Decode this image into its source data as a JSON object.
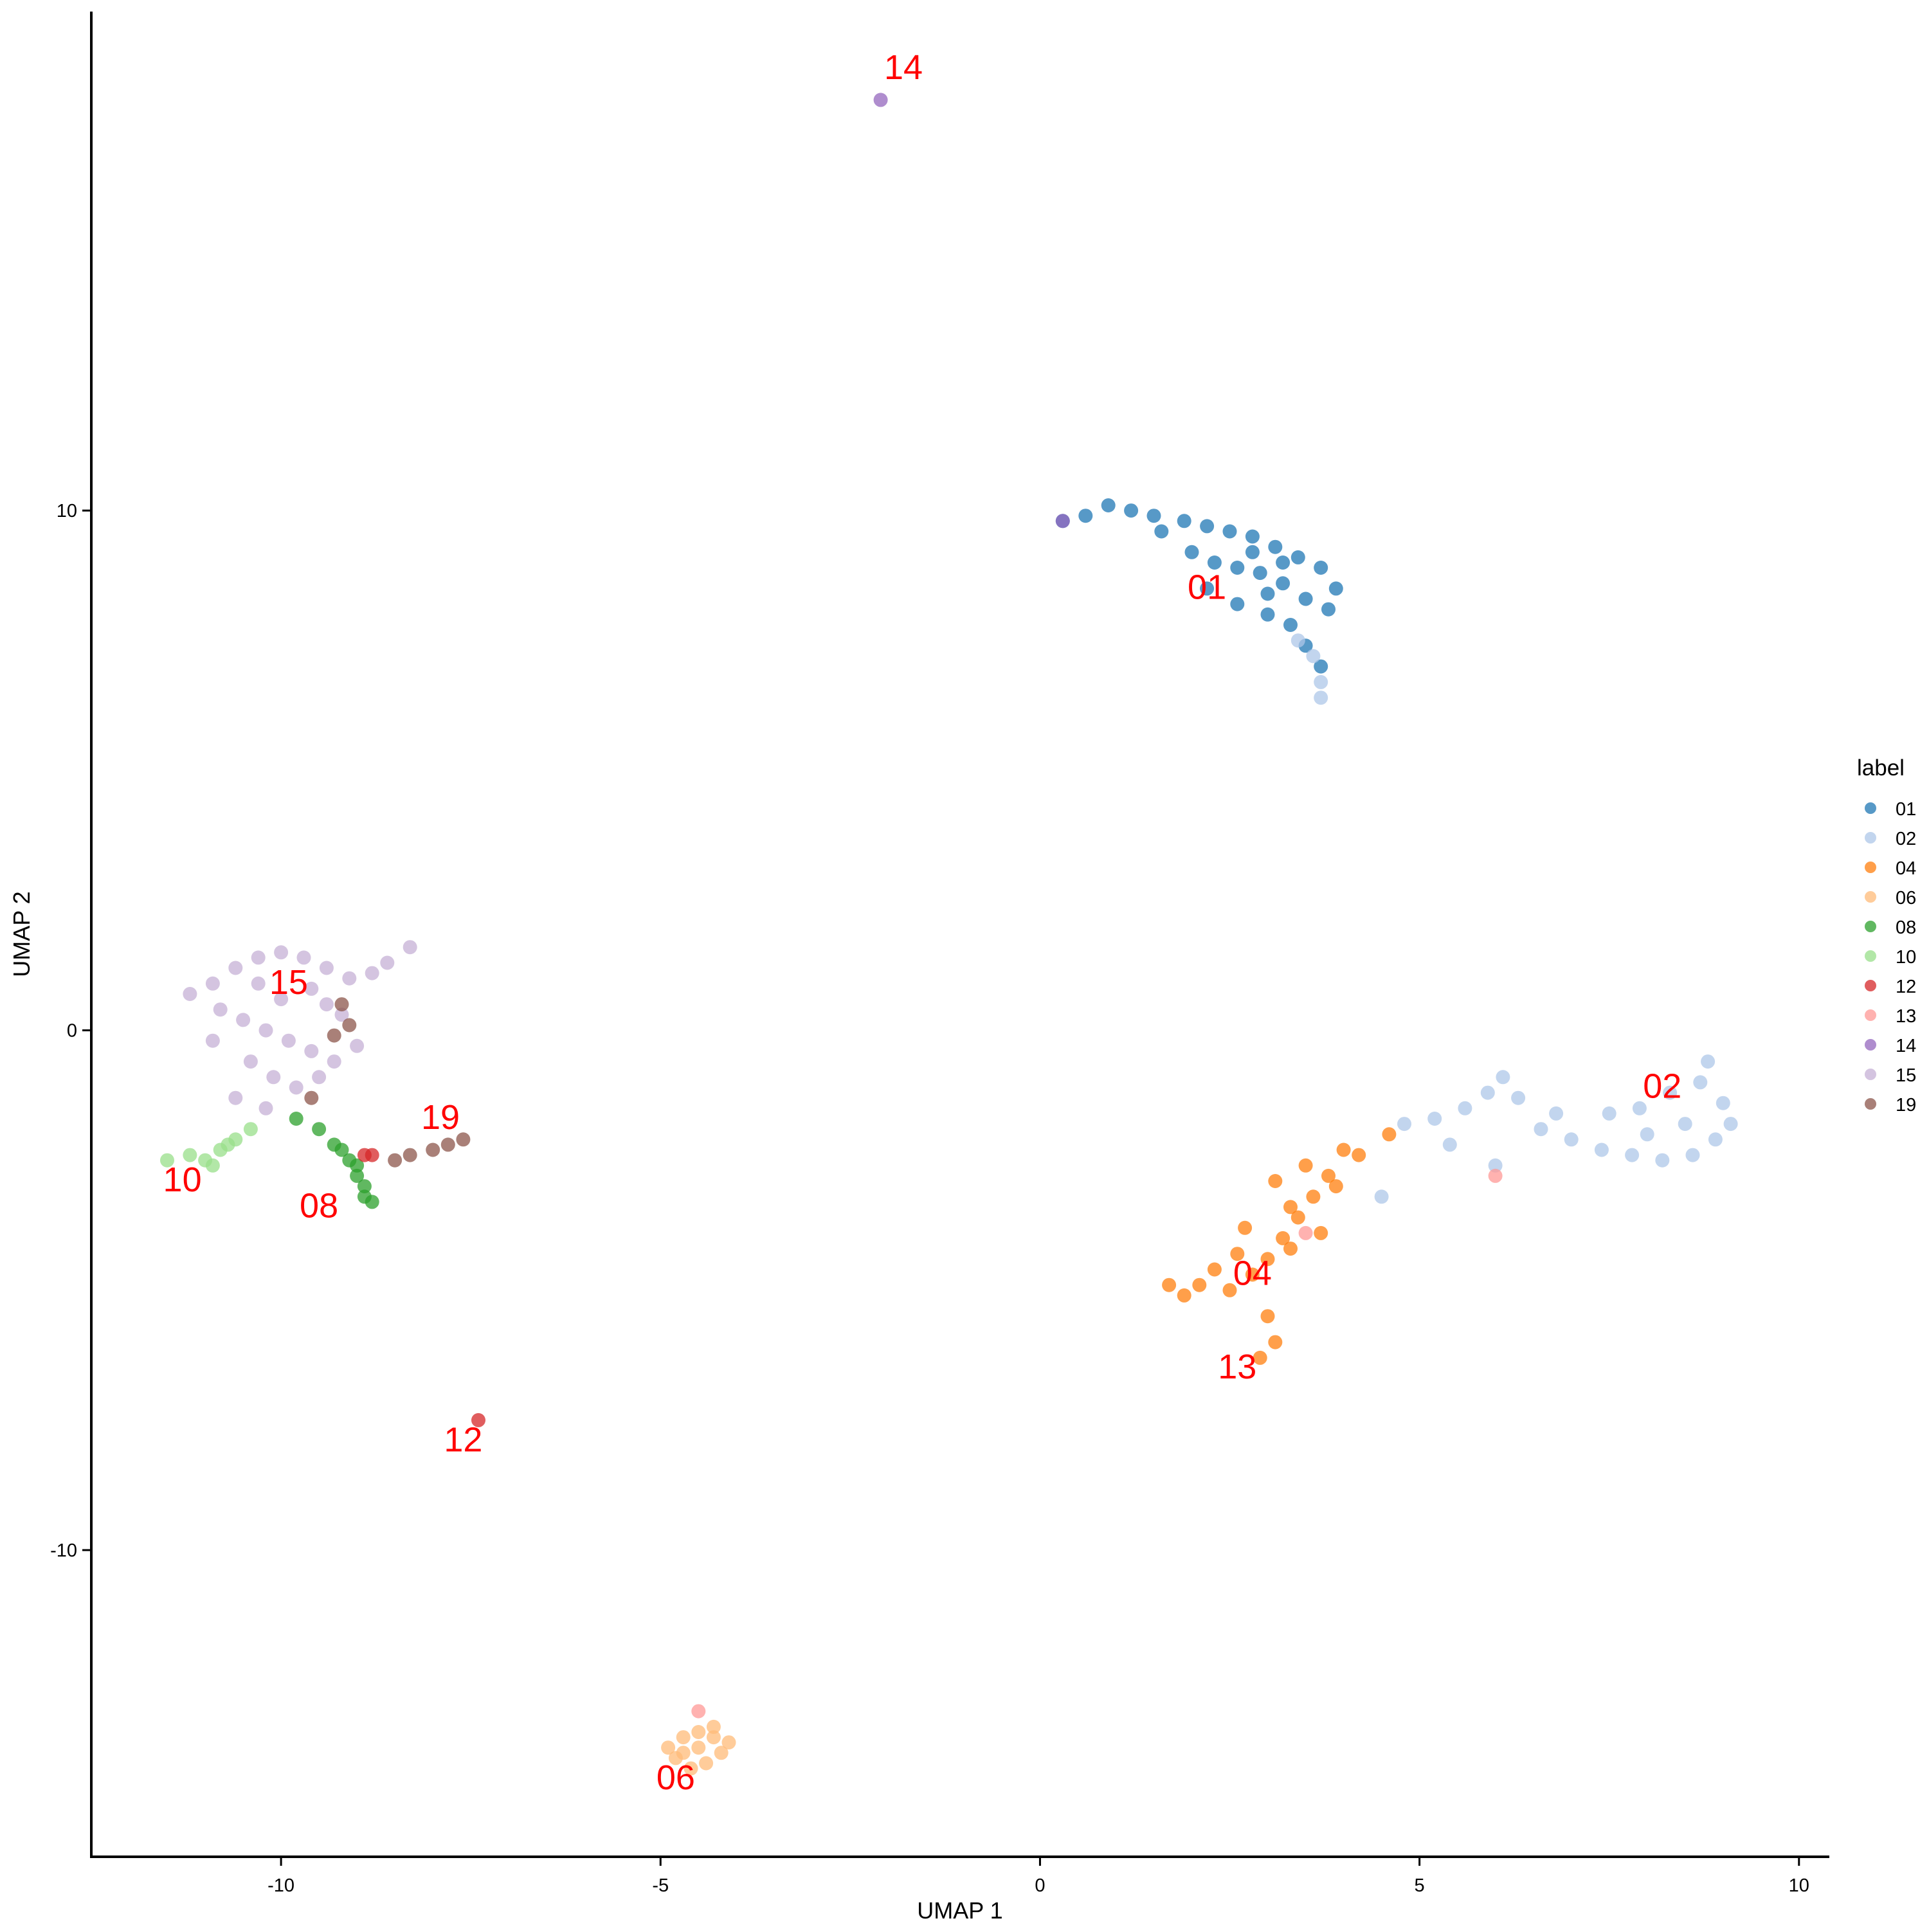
{
  "chart_data": {
    "type": "scatter",
    "title": "",
    "xlabel": "UMAP 1",
    "ylabel": "UMAP 2",
    "xlim": [
      -12.5,
      10.4
    ],
    "ylim": [
      -15.9,
      19.6
    ],
    "x_ticks": [
      -10,
      -5,
      0,
      5,
      10
    ],
    "y_ticks": [
      -10,
      0,
      10
    ],
    "x_tick_labels": [
      "-10",
      "-5",
      "0",
      "5",
      "10"
    ],
    "y_tick_labels": [
      "-10",
      "0",
      "10"
    ],
    "grid": false,
    "legend": {
      "title": "label",
      "placement": "right",
      "entries": [
        {
          "label": "01",
          "color": "#1f77b4"
        },
        {
          "label": "02",
          "color": "#aec7e8"
        },
        {
          "label": "04",
          "color": "#ff7f0e"
        },
        {
          "label": "06",
          "color": "#ffbb78"
        },
        {
          "label": "08",
          "color": "#2ca02c"
        },
        {
          "label": "10",
          "color": "#98df8a"
        },
        {
          "label": "12",
          "color": "#d62728"
        },
        {
          "label": "13",
          "color": "#ff9896"
        },
        {
          "label": "14",
          "color": "#9467bd"
        },
        {
          "label": "15",
          "color": "#c5b0d5"
        },
        {
          "label": "19",
          "color": "#8c564b"
        }
      ]
    },
    "cluster_labels": [
      {
        "text": "14",
        "x": -1.8,
        "y": 18.3
      },
      {
        "text": "01",
        "x": 2.2,
        "y": 8.3
      },
      {
        "text": "15",
        "x": -9.9,
        "y": 0.7
      },
      {
        "text": "19",
        "x": -7.9,
        "y": -1.9
      },
      {
        "text": "10",
        "x": -11.3,
        "y": -3.1
      },
      {
        "text": "08",
        "x": -9.5,
        "y": -3.6
      },
      {
        "text": "02",
        "x": 8.2,
        "y": -1.3
      },
      {
        "text": "04",
        "x": 2.8,
        "y": -4.9
      },
      {
        "text": "13",
        "x": 2.6,
        "y": -6.7
      },
      {
        "text": "12",
        "x": -7.6,
        "y": -8.1
      },
      {
        "text": "06",
        "x": -4.8,
        "y": -14.6
      }
    ],
    "series": [
      {
        "name": "01",
        "color": "#1f77b4",
        "points": [
          [
            0.3,
            9.8
          ],
          [
            0.6,
            9.9
          ],
          [
            0.9,
            10.1
          ],
          [
            1.2,
            10.0
          ],
          [
            1.5,
            9.9
          ],
          [
            1.9,
            9.8
          ],
          [
            2.2,
            9.7
          ],
          [
            2.5,
            9.6
          ],
          [
            2.8,
            9.5
          ],
          [
            3.1,
            9.3
          ],
          [
            3.4,
            9.1
          ],
          [
            3.7,
            8.9
          ],
          [
            3.9,
            8.5
          ],
          [
            2.0,
            9.2
          ],
          [
            2.3,
            9.0
          ],
          [
            2.6,
            8.9
          ],
          [
            2.9,
            8.8
          ],
          [
            3.2,
            8.6
          ],
          [
            3.5,
            8.3
          ],
          [
            3.8,
            8.1
          ],
          [
            2.2,
            8.5
          ],
          [
            2.6,
            8.2
          ],
          [
            3.0,
            8.0
          ],
          [
            3.3,
            7.8
          ],
          [
            3.5,
            7.4
          ],
          [
            3.7,
            7.0
          ],
          [
            3.2,
            9.0
          ],
          [
            2.8,
            9.2
          ],
          [
            1.6,
            9.6
          ],
          [
            3.0,
            8.4
          ]
        ]
      },
      {
        "name": "02",
        "color": "#aec7e8",
        "points": [
          [
            3.6,
            7.2
          ],
          [
            3.7,
            6.7
          ],
          [
            3.7,
            6.4
          ],
          [
            3.4,
            7.5
          ],
          [
            4.8,
            -1.8
          ],
          [
            5.2,
            -1.7
          ],
          [
            5.6,
            -1.5
          ],
          [
            5.9,
            -1.2
          ],
          [
            6.1,
            -0.9
          ],
          [
            6.3,
            -1.3
          ],
          [
            6.6,
            -1.9
          ],
          [
            7.0,
            -2.1
          ],
          [
            7.4,
            -2.3
          ],
          [
            7.8,
            -2.4
          ],
          [
            8.2,
            -2.5
          ],
          [
            8.6,
            -2.4
          ],
          [
            8.9,
            -2.1
          ],
          [
            9.1,
            -1.8
          ],
          [
            9.0,
            -1.4
          ],
          [
            8.7,
            -1.0
          ],
          [
            8.3,
            -1.2
          ],
          [
            7.9,
            -1.5
          ],
          [
            7.5,
            -1.6
          ],
          [
            8.5,
            -1.8
          ],
          [
            8.0,
            -2.0
          ],
          [
            6.0,
            -2.6
          ],
          [
            5.4,
            -2.2
          ],
          [
            8.8,
            -0.6
          ],
          [
            4.5,
            -3.2
          ],
          [
            6.8,
            -1.6
          ]
        ]
      },
      {
        "name": "04",
        "color": "#ff7f0e",
        "points": [
          [
            1.7,
            -4.9
          ],
          [
            2.1,
            -4.9
          ],
          [
            2.5,
            -5.0
          ],
          [
            2.8,
            -4.7
          ],
          [
            3.0,
            -4.4
          ],
          [
            3.2,
            -4.0
          ],
          [
            3.4,
            -3.6
          ],
          [
            3.6,
            -3.2
          ],
          [
            3.8,
            -2.8
          ],
          [
            4.2,
            -2.4
          ],
          [
            4.6,
            -2.0
          ],
          [
            3.0,
            -5.5
          ],
          [
            3.1,
            -6.0
          ],
          [
            2.9,
            -6.3
          ],
          [
            3.3,
            -3.4
          ],
          [
            2.7,
            -3.8
          ],
          [
            3.5,
            -2.6
          ],
          [
            3.9,
            -3.0
          ],
          [
            3.1,
            -2.9
          ],
          [
            2.6,
            -4.3
          ],
          [
            3.7,
            -3.9
          ],
          [
            2.3,
            -4.6
          ],
          [
            1.9,
            -5.1
          ],
          [
            4.0,
            -2.3
          ],
          [
            3.3,
            -4.2
          ]
        ]
      },
      {
        "name": "06",
        "color": "#ffbb78",
        "points": [
          [
            -4.9,
            -13.8
          ],
          [
            -4.7,
            -13.6
          ],
          [
            -4.5,
            -13.5
          ],
          [
            -4.3,
            -13.6
          ],
          [
            -4.2,
            -13.9
          ],
          [
            -4.4,
            -14.1
          ],
          [
            -4.6,
            -14.2
          ],
          [
            -4.8,
            -14.0
          ],
          [
            -4.5,
            -13.8
          ],
          [
            -4.3,
            -13.4
          ],
          [
            -4.7,
            -13.9
          ],
          [
            -4.1,
            -13.7
          ]
        ]
      },
      {
        "name": "08",
        "color": "#2ca02c",
        "points": [
          [
            -9.8,
            -1.7
          ],
          [
            -9.5,
            -1.9
          ],
          [
            -9.3,
            -2.2
          ],
          [
            -9.1,
            -2.5
          ],
          [
            -9.0,
            -2.8
          ],
          [
            -8.9,
            -3.0
          ],
          [
            -8.8,
            -3.3
          ],
          [
            -9.2,
            -2.3
          ],
          [
            -9.0,
            -2.6
          ],
          [
            -8.9,
            -3.2
          ]
        ]
      },
      {
        "name": "10",
        "color": "#98df8a",
        "points": [
          [
            -11.5,
            -2.5
          ],
          [
            -11.2,
            -2.4
          ],
          [
            -11.0,
            -2.5
          ],
          [
            -10.8,
            -2.3
          ],
          [
            -10.6,
            -2.1
          ],
          [
            -10.4,
            -1.9
          ],
          [
            -10.9,
            -2.6
          ],
          [
            -10.7,
            -2.2
          ]
        ]
      },
      {
        "name": "12",
        "color": "#d62728",
        "points": [
          [
            -7.4,
            -7.5
          ],
          [
            -8.9,
            -2.4
          ],
          [
            -8.8,
            -2.4
          ]
        ]
      },
      {
        "name": "13",
        "color": "#ff9896",
        "points": [
          [
            6.0,
            -2.8
          ],
          [
            -4.5,
            -13.1
          ],
          [
            3.5,
            -3.9
          ]
        ]
      },
      {
        "name": "14",
        "color": "#9467bd",
        "points": [
          [
            -2.1,
            17.9
          ],
          [
            0.3,
            9.8
          ]
        ]
      },
      {
        "name": "15",
        "color": "#c5b0d5",
        "points": [
          [
            -11.2,
            0.7
          ],
          [
            -10.9,
            0.9
          ],
          [
            -10.6,
            1.2
          ],
          [
            -10.3,
            1.4
          ],
          [
            -10.0,
            1.5
          ],
          [
            -9.7,
            1.4
          ],
          [
            -9.4,
            1.2
          ],
          [
            -9.1,
            1.0
          ],
          [
            -8.8,
            1.1
          ],
          [
            -8.6,
            1.3
          ],
          [
            -8.3,
            1.6
          ],
          [
            -10.8,
            0.4
          ],
          [
            -10.5,
            0.2
          ],
          [
            -10.2,
            0.0
          ],
          [
            -9.9,
            -0.2
          ],
          [
            -9.6,
            -0.4
          ],
          [
            -9.3,
            -0.6
          ],
          [
            -10.4,
            -0.6
          ],
          [
            -10.1,
            -0.9
          ],
          [
            -9.8,
            -1.1
          ],
          [
            -9.5,
            -0.9
          ],
          [
            -10.6,
            -1.3
          ],
          [
            -10.2,
            -1.5
          ],
          [
            -10.9,
            -0.2
          ],
          [
            -9.2,
            0.3
          ],
          [
            -9.0,
            -0.3
          ],
          [
            -10.0,
            0.6
          ],
          [
            -9.6,
            0.8
          ],
          [
            -10.3,
            0.9
          ],
          [
            -9.4,
            0.5
          ]
        ]
      },
      {
        "name": "19",
        "color": "#8c564b",
        "points": [
          [
            -9.2,
            0.5
          ],
          [
            -9.3,
            -0.1
          ],
          [
            -9.1,
            0.1
          ],
          [
            -9.6,
            -1.3
          ],
          [
            -8.3,
            -2.4
          ],
          [
            -8.0,
            -2.3
          ],
          [
            -7.8,
            -2.2
          ],
          [
            -7.6,
            -2.1
          ],
          [
            -8.5,
            -2.5
          ]
        ]
      }
    ]
  }
}
